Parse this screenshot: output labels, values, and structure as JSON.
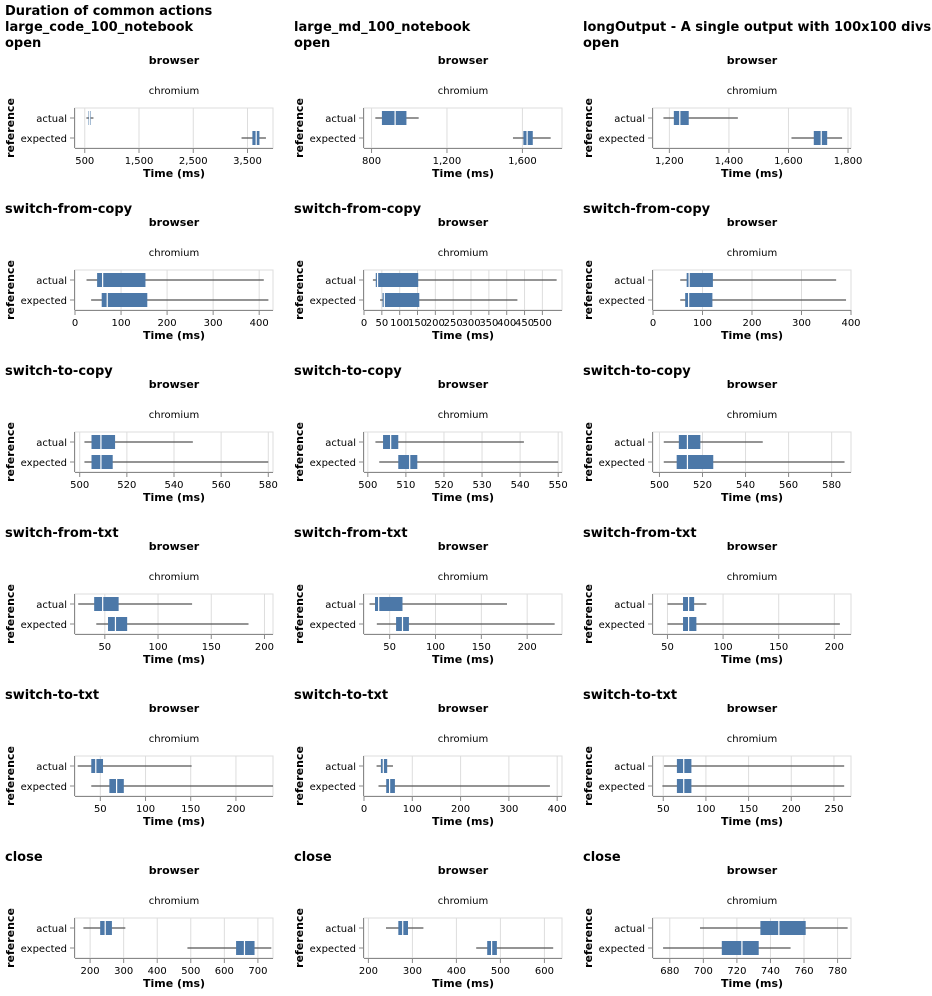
{
  "title_lines": [
    "Duration of common actions"
  ],
  "column_facet_title": "browser",
  "column_facet_value": "chromium",
  "y_axis_title": "reference",
  "x_axis_title": "Time (ms)",
  "categories": [
    "actual",
    "expected"
  ],
  "colors": {
    "box": "#4c78a8",
    "whisker": "#555555",
    "grid": "#dddddd",
    "median": "#ffffff"
  },
  "chart_data": [
    {
      "type": "boxplot",
      "title": "large_code_100_notebook open",
      "title_lines": [
        "large_code_100_notebook",
        "open"
      ],
      "xlim": [
        320,
        3970
      ],
      "xticks": [
        500,
        1500,
        2500,
        3500
      ],
      "tick_labels": [
        "500",
        "1,500",
        "2,500",
        "3,500"
      ],
      "boxes": [
        {
          "category": "actual",
          "min": 530,
          "q1": 570,
          "median": 590,
          "q3": 610,
          "max": 660
        },
        {
          "category": "expected",
          "min": 3390,
          "q1": 3590,
          "median": 3660,
          "q3": 3720,
          "max": 3840
        }
      ]
    },
    {
      "type": "boxplot",
      "title": "large_md_100_notebook open",
      "title_lines": [
        "large_md_100_notebook",
        "open"
      ],
      "xlim": [
        760,
        1810
      ],
      "xticks": [
        800,
        1200,
        1600
      ],
      "tick_labels": [
        "800",
        "1,200",
        "1,600"
      ],
      "boxes": [
        {
          "category": "actual",
          "min": 820,
          "q1": 855,
          "median": 925,
          "q3": 985,
          "max": 1050
        },
        {
          "category": "expected",
          "min": 1550,
          "q1": 1605,
          "median": 1625,
          "q3": 1655,
          "max": 1750
        }
      ]
    },
    {
      "type": "boxplot",
      "title": "longOutput - A single output with 100x100 divs open",
      "title_lines": [
        "longOutput - A single output with 100x100 divs",
        "open"
      ],
      "xlim": [
        1145,
        1810
      ],
      "xticks": [
        1200,
        1400,
        1600,
        1800
      ],
      "tick_labels": [
        "1,200",
        "1,400",
        "1,600",
        "1,800"
      ],
      "boxes": [
        {
          "category": "actual",
          "min": 1180,
          "q1": 1215,
          "median": 1235,
          "q3": 1265,
          "max": 1430
        },
        {
          "category": "expected",
          "min": 1610,
          "q1": 1685,
          "median": 1710,
          "q3": 1730,
          "max": 1780
        }
      ]
    },
    {
      "type": "boxplot",
      "title": "switch-from-copy",
      "title_lines": [
        "switch-from-copy"
      ],
      "xlim": [
        0,
        430
      ],
      "xticks": [
        0,
        100,
        200,
        300,
        400
      ],
      "tick_labels": [
        "0",
        "100",
        "200",
        "300",
        "400"
      ],
      "boxes": [
        {
          "category": "actual",
          "min": 25,
          "q1": 48,
          "median": 60,
          "q3": 153,
          "max": 410
        },
        {
          "category": "expected",
          "min": 35,
          "q1": 58,
          "median": 70,
          "q3": 157,
          "max": 420
        }
      ]
    },
    {
      "type": "boxplot",
      "title": "switch-from-copy",
      "title_lines": [
        "switch-from-copy"
      ],
      "xlim": [
        0,
        555
      ],
      "xticks": [
        0,
        50,
        100,
        150,
        200,
        250,
        300,
        350,
        400,
        450,
        500
      ],
      "tick_labels": [
        "0",
        "50",
        "100",
        "150",
        "200",
        "250",
        "300",
        "350",
        "400",
        "450",
        "500"
      ],
      "boxes": [
        {
          "category": "actual",
          "min": 25,
          "q1": 33,
          "median": 38,
          "q3": 152,
          "max": 540
        },
        {
          "category": "expected",
          "min": 45,
          "q1": 52,
          "median": 57,
          "q3": 155,
          "max": 430
        }
      ]
    },
    {
      "type": "boxplot",
      "title": "switch-from-copy",
      "title_lines": [
        "switch-from-copy"
      ],
      "xlim": [
        0,
        400
      ],
      "xticks": [
        0,
        100,
        200,
        300,
        400
      ],
      "tick_labels": [
        "0",
        "100",
        "200",
        "300",
        "400"
      ],
      "boxes": [
        {
          "category": "actual",
          "min": 55,
          "q1": 68,
          "median": 73,
          "q3": 121,
          "max": 370
        },
        {
          "category": "expected",
          "min": 55,
          "q1": 65,
          "median": 72,
          "q3": 120,
          "max": 390
        }
      ]
    },
    {
      "type": "boxplot",
      "title": "switch-to-copy",
      "title_lines": [
        "switch-to-copy"
      ],
      "xlim": [
        498,
        582
      ],
      "xticks": [
        500,
        520,
        540,
        560,
        580
      ],
      "tick_labels": [
        "500",
        "520",
        "540",
        "560",
        "580"
      ],
      "boxes": [
        {
          "category": "actual",
          "min": 502,
          "q1": 505,
          "median": 509,
          "q3": 515,
          "max": 548
        },
        {
          "category": "expected",
          "min": 502,
          "q1": 505,
          "median": 509,
          "q3": 514,
          "max": 580
        }
      ]
    },
    {
      "type": "boxplot",
      "title": "switch-to-copy",
      "title_lines": [
        "switch-to-copy"
      ],
      "xlim": [
        499,
        551
      ],
      "xticks": [
        500,
        510,
        520,
        530,
        540,
        550
      ],
      "tick_labels": [
        "500",
        "510",
        "520",
        "530",
        "540",
        "550"
      ],
      "boxes": [
        {
          "category": "actual",
          "min": 502,
          "q1": 504,
          "median": 506,
          "q3": 508,
          "max": 541
        },
        {
          "category": "expected",
          "min": 503,
          "q1": 508,
          "median": 511,
          "q3": 513,
          "max": 550
        }
      ]
    },
    {
      "type": "boxplot",
      "title": "switch-to-copy",
      "title_lines": [
        "switch-to-copy"
      ],
      "xlim": [
        497,
        589
      ],
      "xticks": [
        500,
        520,
        540,
        560,
        580
      ],
      "tick_labels": [
        "500",
        "520",
        "540",
        "560",
        "580"
      ],
      "boxes": [
        {
          "category": "actual",
          "min": 502,
          "q1": 509,
          "median": 513,
          "q3": 519,
          "max": 548
        },
        {
          "category": "expected",
          "min": 502,
          "q1": 508,
          "median": 513,
          "q3": 525,
          "max": 586
        }
      ]
    },
    {
      "type": "boxplot",
      "title": "switch-from-txt",
      "title_lines": [
        "switch-from-txt"
      ],
      "xlim": [
        22,
        208
      ],
      "xticks": [
        50,
        100,
        150,
        200
      ],
      "tick_labels": [
        "50",
        "100",
        "150",
        "200"
      ],
      "boxes": [
        {
          "category": "actual",
          "min": 25,
          "q1": 40,
          "median": 48,
          "q3": 63,
          "max": 132
        },
        {
          "category": "expected",
          "min": 42,
          "q1": 53,
          "median": 60,
          "q3": 71,
          "max": 185
        }
      ]
    },
    {
      "type": "boxplot",
      "title": "switch-from-txt",
      "title_lines": [
        "switch-from-txt"
      ],
      "xlim": [
        22,
        238
      ],
      "xticks": [
        50,
        100,
        150,
        200
      ],
      "tick_labels": [
        "50",
        "100",
        "150",
        "200"
      ],
      "boxes": [
        {
          "category": "actual",
          "min": 28,
          "q1": 34,
          "median": 38,
          "q3": 64,
          "max": 178
        },
        {
          "category": "expected",
          "min": 36,
          "q1": 57,
          "median": 64,
          "q3": 71,
          "max": 230
        }
      ]
    },
    {
      "type": "boxplot",
      "title": "switch-from-txt",
      "title_lines": [
        "switch-from-txt"
      ],
      "xlim": [
        37,
        215
      ],
      "xticks": [
        50,
        100,
        150,
        200
      ],
      "tick_labels": [
        "50",
        "100",
        "150",
        "200"
      ],
      "boxes": [
        {
          "category": "actual",
          "min": 50,
          "q1": 64,
          "median": 69,
          "q3": 74,
          "max": 85
        },
        {
          "category": "expected",
          "min": 50,
          "q1": 64,
          "median": 69,
          "q3": 76,
          "max": 205
        }
      ]
    },
    {
      "type": "boxplot",
      "title": "switch-to-txt",
      "title_lines": [
        "switch-to-txt"
      ],
      "xlim": [
        22,
        241
      ],
      "xticks": [
        50,
        100,
        150,
        200
      ],
      "tick_labels": [
        "50",
        "100",
        "150",
        "200"
      ],
      "boxes": [
        {
          "category": "actual",
          "min": 25,
          "q1": 40,
          "median": 45,
          "q3": 53,
          "max": 151
        },
        {
          "category": "expected",
          "min": 40,
          "q1": 60,
          "median": 68,
          "q3": 76,
          "max": 241
        }
      ]
    },
    {
      "type": "boxplot",
      "title": "switch-to-txt",
      "title_lines": [
        "switch-to-txt"
      ],
      "xlim": [
        0,
        410
      ],
      "xticks": [
        0,
        100,
        200,
        300,
        400
      ],
      "tick_labels": [
        "0",
        "100",
        "200",
        "300",
        "400"
      ],
      "boxes": [
        {
          "category": "actual",
          "min": 26,
          "q1": 35,
          "median": 40,
          "q3": 48,
          "max": 60
        },
        {
          "category": "expected",
          "min": 30,
          "q1": 46,
          "median": 53,
          "q3": 64,
          "max": 385
        }
      ]
    },
    {
      "type": "boxplot",
      "title": "switch-to-txt",
      "title_lines": [
        "switch-to-txt"
      ],
      "xlim": [
        38,
        270
      ],
      "xticks": [
        50,
        100,
        150,
        200,
        250
      ],
      "tick_labels": [
        "50",
        "100",
        "150",
        "200",
        "250"
      ],
      "boxes": [
        {
          "category": "actual",
          "min": 51,
          "q1": 66,
          "median": 74,
          "q3": 83,
          "max": 262
        },
        {
          "category": "expected",
          "min": 49,
          "q1": 66,
          "median": 74,
          "q3": 83,
          "max": 262
        }
      ]
    },
    {
      "type": "boxplot",
      "title": "close",
      "title_lines": [
        "close"
      ],
      "xlim": [
        155,
        745
      ],
      "xticks": [
        200,
        300,
        400,
        500,
        600,
        700
      ],
      "tick_labels": [
        "200",
        "300",
        "400",
        "500",
        "600",
        "700"
      ],
      "boxes": [
        {
          "category": "actual",
          "min": 180,
          "q1": 230,
          "median": 245,
          "q3": 265,
          "max": 305
        },
        {
          "category": "expected",
          "min": 490,
          "q1": 635,
          "median": 660,
          "q3": 690,
          "max": 740
        }
      ]
    },
    {
      "type": "boxplot",
      "title": "close",
      "title_lines": [
        "close"
      ],
      "xlim": [
        190,
        640
      ],
      "xticks": [
        200,
        300,
        400,
        500,
        600
      ],
      "tick_labels": [
        "200",
        "300",
        "400",
        "500",
        "600"
      ],
      "boxes": [
        {
          "category": "actual",
          "min": 240,
          "q1": 268,
          "median": 278,
          "q3": 290,
          "max": 325
        },
        {
          "category": "expected",
          "min": 445,
          "q1": 470,
          "median": 480,
          "q3": 492,
          "max": 620
        }
      ]
    },
    {
      "type": "boxplot",
      "title": "close",
      "title_lines": [
        "close"
      ],
      "xlim": [
        670,
        788
      ],
      "xticks": [
        680,
        700,
        720,
        740,
        760,
        780
      ],
      "tick_labels": [
        "680",
        "700",
        "720",
        "740",
        "760",
        "780"
      ],
      "boxes": [
        {
          "category": "actual",
          "min": 698,
          "q1": 734,
          "median": 745,
          "q3": 761,
          "max": 786
        },
        {
          "category": "expected",
          "min": 676,
          "q1": 711,
          "median": 723,
          "q3": 733,
          "max": 752
        }
      ]
    }
  ]
}
